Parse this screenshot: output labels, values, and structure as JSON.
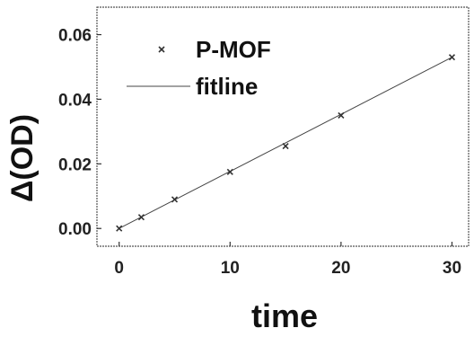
{
  "chart_data": {
    "type": "scatter",
    "xlabel": "time",
    "ylabel": "Δ(OD)",
    "xlim": [
      -2,
      31.5
    ],
    "ylim": [
      -0.0055,
      0.0685
    ],
    "xticks": [
      0,
      10,
      20,
      30
    ],
    "xtick_labels": [
      "0",
      "10",
      "20",
      "30"
    ],
    "yticks": [
      0.0,
      0.02,
      0.04,
      0.06
    ],
    "ytick_labels": [
      "0.00",
      "0.02",
      "0.04",
      "0.06"
    ],
    "legend_position": "top-left",
    "grid": false,
    "series": [
      {
        "name": "P-MOF",
        "kind": "scatter",
        "marker": "x",
        "color": "#333333",
        "x": [
          0,
          2,
          5,
          10,
          15,
          20,
          30
        ],
        "y": [
          0.0,
          0.0035,
          0.009,
          0.0175,
          0.0255,
          0.035,
          0.053
        ]
      },
      {
        "name": "fitline",
        "kind": "line",
        "color": "#444444",
        "x": [
          0,
          30
        ],
        "y": [
          0.0,
          0.053
        ]
      }
    ]
  }
}
